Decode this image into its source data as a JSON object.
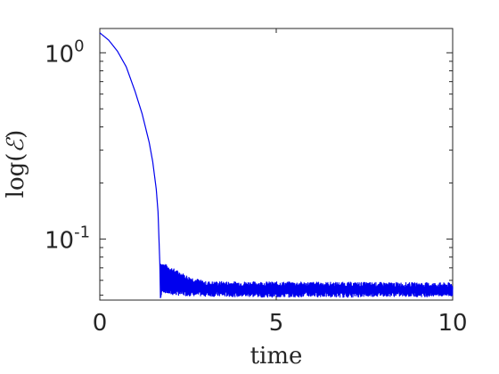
{
  "chart_data": {
    "type": "line",
    "xlabel": "time",
    "ylabel_prefix": "log(",
    "ylabel_symbol": "ℰ",
    "ylabel_suffix": ")",
    "xlim": [
      0,
      10
    ],
    "ylim": [
      0.047,
      1.35
    ],
    "yscale": "log",
    "grid": false,
    "color": "#0000ee",
    "x_ticks": [
      {
        "value": 0,
        "label": "0"
      },
      {
        "value": 5,
        "label": "5"
      },
      {
        "value": 10,
        "label": "10"
      }
    ],
    "y_ticks": [
      {
        "value": 1,
        "base": "10",
        "exp": "0"
      },
      {
        "value": 0.1,
        "base": "10",
        "exp": "-1"
      }
    ],
    "series": [
      {
        "x": [
          0,
          0.25,
          0.5,
          0.75,
          1.0,
          1.2,
          1.4,
          1.5,
          1.6,
          1.65,
          1.7,
          1.72,
          1.75,
          1.8,
          2.0,
          2.5,
          3,
          4,
          5,
          6,
          7,
          8,
          9,
          10
        ],
        "y": [
          1.28,
          1.17,
          1.02,
          0.84,
          0.62,
          0.47,
          0.33,
          0.26,
          0.185,
          0.14,
          0.075,
          0.047,
          0.056,
          0.058,
          0.055,
          0.054,
          0.0535,
          0.053,
          0.0525,
          0.053,
          0.0525,
          0.0535,
          0.053,
          0.0535
        ]
      }
    ],
    "noise_amplitude": [
      {
        "x": 1.72,
        "y": 0.074
      },
      {
        "x": 2.5,
        "y": 0.062
      },
      {
        "x": 3,
        "y": 0.058
      },
      {
        "x": 10,
        "y": 0.057
      }
    ]
  }
}
